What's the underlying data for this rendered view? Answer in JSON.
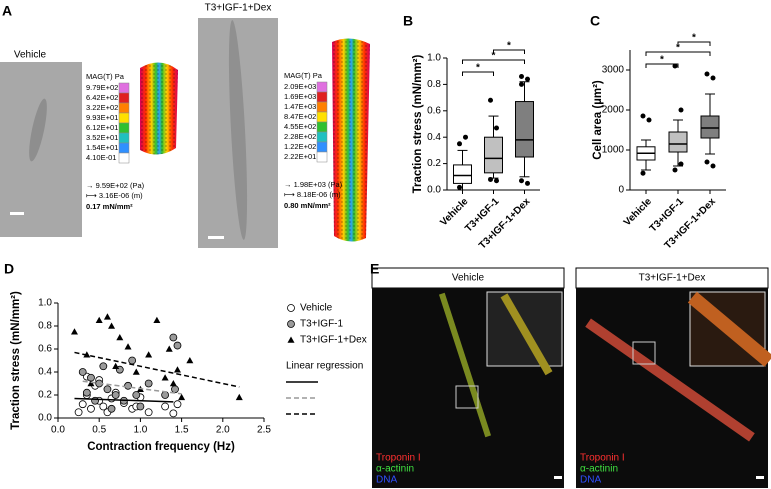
{
  "panel_a": {
    "label": "A",
    "vehicle": {
      "title": "Vehicle",
      "scale_title": "MAG(T) Pa",
      "scale_labels": [
        "9.79E+02",
        "6.42E+02",
        "3.22E+02",
        "9.93E+01",
        "6.12E+01",
        "3.52E+01",
        "1.54E+01",
        "4.10E-01"
      ],
      "arrow_text": "→ 9.59E+02 (Pa)",
      "bar_text": "⟼ 3.16E-06 (m)",
      "stress_text": "0.17 mN/mm²"
    },
    "dex": {
      "title": "T3+IGF-1+Dex",
      "scale_title": "MAG(T) Pa",
      "scale_labels": [
        "2.09E+03",
        "1.69E+03",
        "1.47E+03",
        "8.47E+02",
        "4.55E+02",
        "2.28E+02",
        "1.22E+02",
        "2.22E+01"
      ],
      "arrow_text": "→ 1.98E+03 (Pa)",
      "bar_text": "⟼ 8.18E-06 (m)",
      "stress_text": "0.80 mN/mm²"
    }
  },
  "panel_e": {
    "label": "E",
    "images": [
      {
        "title": "Vehicle",
        "stains": [
          "Troponin I",
          "α-actinin",
          "DNA"
        ]
      },
      {
        "title": "T3+IGF-1+Dex",
        "stains": [
          "Troponin I",
          "α-actinin",
          "DNA"
        ]
      }
    ]
  },
  "chart_data": [
    {
      "type": "box",
      "panel_label": "B",
      "ylabel": "Traction stress (mN/mm²)",
      "categories": [
        "Vehicle",
        "T3+IGF-1",
        "T3+IGF-1+Dex"
      ],
      "colors": [
        "#ffffff",
        "#c0c0c0",
        "#7f7f7f"
      ],
      "boxes": [
        [
          0.0,
          0.05,
          0.11,
          0.19,
          0.3
        ],
        [
          0.09,
          0.13,
          0.24,
          0.4,
          0.56
        ],
        [
          0.1,
          0.25,
          0.38,
          0.67,
          0.82
        ]
      ],
      "outliers": [
        [
          0.35,
          0.4,
          0.02
        ],
        [
          0.68,
          0.07,
          0.08,
          0.47
        ],
        [
          0.86,
          0.84,
          0.8,
          0.05,
          0.07
        ]
      ],
      "significance": [
        "*",
        "*",
        "*"
      ],
      "ylim": [
        0,
        1.0
      ],
      "yticks": [
        {
          "value": 0,
          "label": "0.0"
        },
        0.2,
        0.4,
        0.6,
        0.8,
        {
          "value": 1.0,
          "label": "1.0"
        }
      ]
    },
    {
      "type": "box",
      "panel_label": "C",
      "ylabel": "Cell area (µm²)",
      "categories": [
        "Vehicle",
        "T3+IGF-1",
        "T3+IGF-1+Dex"
      ],
      "colors": [
        "#ffffff",
        "#c0c0c0",
        "#7f7f7f"
      ],
      "boxes": [
        [
          500,
          750,
          920,
          1080,
          1250
        ],
        [
          600,
          950,
          1150,
          1450,
          1750
        ],
        [
          900,
          1300,
          1550,
          1850,
          2400
        ]
      ],
      "outliers": [
        [
          1850,
          1750,
          420
        ],
        [
          3100,
          2000,
          500,
          650
        ],
        [
          2900,
          2800,
          700,
          600
        ]
      ],
      "significance": [
        "*",
        "*",
        "*"
      ],
      "ylim": [
        0,
        3500
      ],
      "yticks": [
        0,
        1000,
        2000,
        3000
      ]
    },
    {
      "type": "scatter",
      "panel_label": "D",
      "xlabel": "Contraction frequency (Hz)",
      "ylabel": "Traction stress (mN/mm²)",
      "series": [
        {
          "name": "Vehicle",
          "marker": "open-circle",
          "color": "#ffffff",
          "x": [
            0.25,
            0.3,
            0.35,
            0.4,
            0.45,
            0.5,
            0.55,
            0.6,
            0.7,
            0.8,
            0.9,
            1.0,
            1.1,
            1.3,
            1.4,
            0.35,
            0.5,
            0.65,
            0.95,
            1.45
          ],
          "values": [
            0.05,
            0.12,
            0.2,
            0.08,
            0.28,
            0.15,
            0.1,
            0.05,
            0.22,
            0.13,
            0.08,
            0.18,
            0.05,
            0.1,
            0.04,
            0.36,
            0.33,
            0.17,
            0.1,
            0.12
          ]
        },
        {
          "name": "T3+IGF-1",
          "marker": "circle",
          "color": "#9a9a9a",
          "x": [
            0.3,
            0.4,
            0.5,
            0.55,
            0.6,
            0.7,
            0.8,
            0.9,
            1.0,
            1.1,
            1.3,
            1.4,
            1.45,
            0.45,
            0.65,
            0.75,
            0.95,
            1.42,
            0.35,
            0.85
          ],
          "values": [
            0.4,
            0.35,
            0.3,
            0.45,
            0.25,
            0.2,
            0.15,
            0.5,
            0.1,
            0.3,
            0.2,
            0.7,
            0.63,
            0.15,
            0.08,
            0.42,
            0.2,
            0.25,
            0.22,
            0.28
          ]
        },
        {
          "name": "T3+IGF-1+Dex",
          "marker": "triangle",
          "color": "#000000",
          "x": [
            0.2,
            0.35,
            0.5,
            0.6,
            0.7,
            0.75,
            0.85,
            0.95,
            1.1,
            1.2,
            1.3,
            1.35,
            1.4,
            1.5,
            1.6,
            2.2,
            0.4,
            0.65,
            1.0,
            1.45
          ],
          "values": [
            0.75,
            0.55,
            0.85,
            0.88,
            0.45,
            0.7,
            0.62,
            0.4,
            0.55,
            0.85,
            0.35,
            0.6,
            0.3,
            0.18,
            0.5,
            0.18,
            0.3,
            0.8,
            0.25,
            0.42
          ]
        }
      ],
      "regression_title": "Linear regression",
      "regression": [
        {
          "dash": "none",
          "color": "#000000",
          "x": [
            0.2,
            1.4
          ],
          "values": [
            0.17,
            0.14
          ]
        },
        {
          "dash": "5,3",
          "color": "#999999",
          "x": [
            0.3,
            1.5
          ],
          "values": [
            0.32,
            0.21
          ]
        },
        {
          "dash": "5,3",
          "color": "#000000",
          "x": [
            0.2,
            2.2
          ],
          "values": [
            0.57,
            0.27
          ]
        }
      ],
      "xlim": [
        0,
        2.5
      ],
      "xticks": [
        {
          "value": 0,
          "label": "0.0"
        },
        0.5,
        {
          "value": 1,
          "label": "1.0"
        },
        1.5,
        {
          "value": 2,
          "label": "2.0"
        },
        2.5
      ],
      "ylim": [
        0,
        1.0
      ],
      "yticks": [
        {
          "value": 0,
          "label": "0.0"
        },
        0.2,
        0.4,
        0.6,
        0.8,
        {
          "value": 1.0,
          "label": "1.0"
        }
      ]
    }
  ]
}
